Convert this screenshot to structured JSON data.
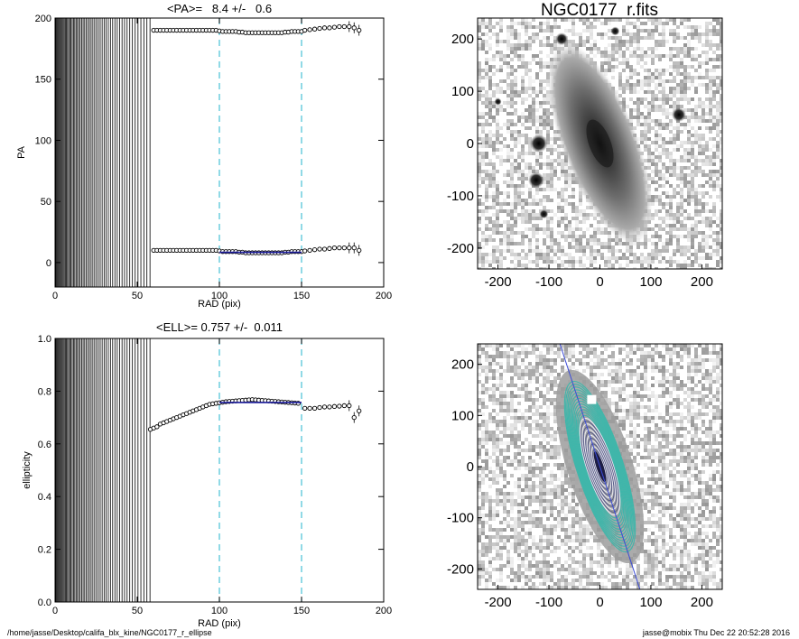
{
  "footer": {
    "path": "/home/jasse/Desktop/califa_blx_kine/NGC0177_r_ellipse",
    "stamp": "jasse@mobix  Thu Dec 22 20:52:28 2016"
  },
  "colors": {
    "guide": "#47c0d6",
    "fit": "#1a1a9c",
    "ellipse": "#3fb6aa",
    "axis_line": "#3b4bd6"
  },
  "chart_data": [
    {
      "id": "pa",
      "type": "scatter",
      "title": "<PA>=   8.4 +/-   0.6",
      "xlabel": "RAD (pix)",
      "ylabel": "PA",
      "xlim": [
        0,
        200
      ],
      "ylim": [
        -20,
        200
      ],
      "xticks": [
        0,
        50,
        100,
        150,
        200
      ],
      "yticks": [
        0,
        50,
        100,
        150,
        200
      ],
      "guide_lines_x": [
        100,
        150
      ],
      "dense_rmax": 58,
      "series": [
        {
          "points": [
            [
              60,
              10
            ],
            [
              62,
              10
            ],
            [
              64,
              10
            ],
            [
              66,
              10
            ],
            [
              68,
              10
            ],
            [
              70,
              10
            ],
            [
              72,
              10
            ],
            [
              74,
              10
            ],
            [
              76,
              10
            ],
            [
              78,
              10
            ],
            [
              80,
              10
            ],
            [
              82,
              10
            ],
            [
              84,
              10
            ],
            [
              86,
              10
            ],
            [
              88,
              10
            ],
            [
              90,
              10
            ],
            [
              92,
              10
            ],
            [
              94,
              10
            ],
            [
              96,
              10
            ],
            [
              98,
              10
            ],
            [
              100,
              9.5
            ],
            [
              102,
              9
            ],
            [
              104,
              9
            ],
            [
              106,
              9
            ],
            [
              108,
              9
            ],
            [
              110,
              9
            ],
            [
              112,
              8.5
            ],
            [
              114,
              8.5
            ],
            [
              116,
              8
            ],
            [
              118,
              8
            ],
            [
              120,
              8
            ],
            [
              122,
              8
            ],
            [
              124,
              8
            ],
            [
              126,
              8
            ],
            [
              128,
              8
            ],
            [
              130,
              8
            ],
            [
              132,
              8
            ],
            [
              134,
              8
            ],
            [
              136,
              8
            ],
            [
              138,
              8
            ],
            [
              140,
              8.5
            ],
            [
              142,
              8.5
            ],
            [
              144,
              9
            ],
            [
              146,
              9
            ],
            [
              148,
              9
            ],
            [
              150,
              9
            ],
            [
              152,
              9.5
            ],
            [
              155,
              10
            ],
            [
              158,
              10.5
            ],
            [
              161,
              11
            ],
            [
              164,
              11
            ],
            [
              167,
              11.5
            ],
            [
              170,
              12
            ],
            [
              173,
              12
            ],
            [
              176,
              12
            ],
            [
              179,
              12
            ],
            [
              182,
              12
            ],
            [
              185,
              10
            ]
          ]
        },
        {
          "points": [
            [
              60,
              190
            ],
            [
              62,
              190
            ],
            [
              64,
              190
            ],
            [
              66,
              190
            ],
            [
              68,
              190
            ],
            [
              70,
              190
            ],
            [
              72,
              190
            ],
            [
              74,
              190
            ],
            [
              76,
              190
            ],
            [
              78,
              190
            ],
            [
              80,
              190
            ],
            [
              82,
              190
            ],
            [
              84,
              190
            ],
            [
              86,
              190
            ],
            [
              88,
              190
            ],
            [
              90,
              190
            ],
            [
              92,
              190
            ],
            [
              94,
              190
            ],
            [
              96,
              190
            ],
            [
              98,
              190
            ],
            [
              100,
              189.5
            ],
            [
              102,
              189
            ],
            [
              104,
              189
            ],
            [
              106,
              189
            ],
            [
              108,
              189
            ],
            [
              110,
              189
            ],
            [
              112,
              188.5
            ],
            [
              114,
              188.5
            ],
            [
              116,
              188
            ],
            [
              118,
              188
            ],
            [
              120,
              188
            ],
            [
              122,
              188
            ],
            [
              124,
              188
            ],
            [
              126,
              188
            ],
            [
              128,
              188
            ],
            [
              130,
              188
            ],
            [
              132,
              188
            ],
            [
              134,
              188
            ],
            [
              136,
              188
            ],
            [
              138,
              188
            ],
            [
              140,
              188.5
            ],
            [
              142,
              188.5
            ],
            [
              144,
              189
            ],
            [
              146,
              189
            ],
            [
              148,
              189
            ],
            [
              150,
              189
            ],
            [
              152,
              190
            ],
            [
              155,
              190.5
            ],
            [
              158,
              191
            ],
            [
              161,
              191.5
            ],
            [
              164,
              192
            ],
            [
              167,
              192
            ],
            [
              170,
              192.5
            ],
            [
              173,
              193
            ],
            [
              176,
              193
            ],
            [
              179,
              193
            ],
            [
              182,
              192
            ],
            [
              185,
              190
            ]
          ]
        }
      ],
      "fit": {
        "x": [
          100,
          150
        ],
        "y": [
          8.4,
          8.4
        ]
      }
    },
    {
      "id": "ell",
      "type": "scatter",
      "title": "<ELL>= 0.757 +/-  0.011",
      "xlabel": "RAD (pix)",
      "ylabel": "ellipticity",
      "xlim": [
        0,
        200
      ],
      "ylim": [
        0.0,
        1.0
      ],
      "xticks": [
        0,
        50,
        100,
        150,
        200
      ],
      "yticks": [
        0.0,
        0.2,
        0.4,
        0.6,
        0.8,
        1.0
      ],
      "guide_lines_x": [
        100,
        150
      ],
      "dense_rmax": 58,
      "series": [
        {
          "points": [
            [
              58,
              0.655
            ],
            [
              60,
              0.66
            ],
            [
              62,
              0.665
            ],
            [
              64,
              0.675
            ],
            [
              66,
              0.68
            ],
            [
              68,
              0.685
            ],
            [
              70,
              0.69
            ],
            [
              72,
              0.695
            ],
            [
              74,
              0.7
            ],
            [
              76,
              0.705
            ],
            [
              78,
              0.71
            ],
            [
              80,
              0.715
            ],
            [
              82,
              0.72
            ],
            [
              84,
              0.725
            ],
            [
              86,
              0.73
            ],
            [
              88,
              0.735
            ],
            [
              90,
              0.74
            ],
            [
              92,
              0.745
            ],
            [
              94,
              0.75
            ],
            [
              96,
              0.752
            ],
            [
              98,
              0.754
            ],
            [
              100,
              0.756
            ],
            [
              102,
              0.758
            ],
            [
              104,
              0.76
            ],
            [
              106,
              0.761
            ],
            [
              108,
              0.762
            ],
            [
              110,
              0.763
            ],
            [
              112,
              0.764
            ],
            [
              114,
              0.765
            ],
            [
              116,
              0.766
            ],
            [
              118,
              0.767
            ],
            [
              120,
              0.768
            ],
            [
              122,
              0.767
            ],
            [
              124,
              0.766
            ],
            [
              126,
              0.765
            ],
            [
              128,
              0.764
            ],
            [
              130,
              0.763
            ],
            [
              132,
              0.762
            ],
            [
              134,
              0.761
            ],
            [
              136,
              0.76
            ],
            [
              138,
              0.759
            ],
            [
              140,
              0.758
            ],
            [
              142,
              0.757
            ],
            [
              144,
              0.756
            ],
            [
              146,
              0.755
            ],
            [
              148,
              0.754
            ],
            [
              152,
              0.735
            ],
            [
              155,
              0.735
            ],
            [
              158,
              0.735
            ],
            [
              161,
              0.738
            ],
            [
              164,
              0.74
            ],
            [
              167,
              0.74
            ],
            [
              170,
              0.742
            ],
            [
              173,
              0.743
            ],
            [
              176,
              0.745
            ],
            [
              179,
              0.745
            ],
            [
              182,
              0.7
            ],
            [
              185,
              0.725
            ]
          ]
        }
      ],
      "fit": {
        "x": [
          100,
          150
        ],
        "y": [
          0.757,
          0.757
        ]
      }
    },
    {
      "id": "image",
      "type": "heatmap",
      "title": "NGC0177_r.fits",
      "xlim": [
        -240,
        240
      ],
      "ylim": [
        -240,
        240
      ],
      "xticks": [
        -200,
        -100,
        0,
        100,
        200
      ],
      "yticks": [
        -200,
        -100,
        0,
        100,
        200
      ]
    },
    {
      "id": "model",
      "type": "heatmap",
      "title": "",
      "xlim": [
        -240,
        240
      ],
      "ylim": [
        -240,
        240
      ],
      "xticks": [
        -200,
        -100,
        0,
        100,
        200
      ],
      "yticks": [
        -200,
        -100,
        0,
        100,
        200
      ]
    }
  ]
}
